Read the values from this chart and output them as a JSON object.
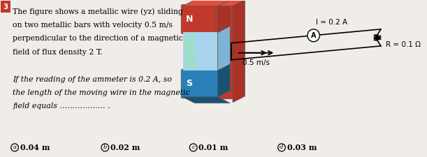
{
  "bg_color": "#f0ede8",
  "text_lines": [
    "The figure shows a metallic wire (yz) sliding",
    "on two metallic bars with velocity 0.5 m/s",
    "perpendicular to the direction of a magnetic",
    "field of flux density 2 T.",
    "",
    "If the reading of the ammeter is 0.2 A, so",
    "the length of the moving wire in the magnetic",
    "field equals ……………… ."
  ],
  "choices": [
    {
      "label": "a",
      "text": "0.04 m"
    },
    {
      "label": "b",
      "text": "0.02 m"
    },
    {
      "label": "c",
      "text": "0.01 m"
    },
    {
      "label": "d",
      "text": "0.03 m"
    }
  ],
  "I_label": "I = 0.2 A",
  "v_label": "0.5 m/s",
  "R_label": "R = 0.1 Ω",
  "N_label": "N",
  "S_label": "S",
  "number": "3",
  "number_bg": "#c0392b"
}
